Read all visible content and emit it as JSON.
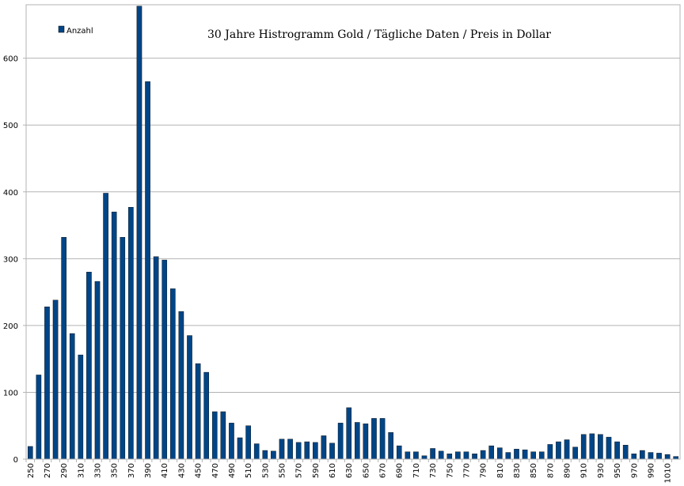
{
  "chart_data": {
    "type": "bar",
    "title": "30 Jahre Histrogramm Gold / Tägliche Daten / Preis in Dollar",
    "xlabel": "",
    "ylabel": "",
    "legend": {
      "position": "top-left",
      "entries": [
        "Anzahl"
      ]
    },
    "grid": "horizontal",
    "ylim": [
      0,
      680
    ],
    "yticks": [
      0,
      100,
      200,
      300,
      400,
      500,
      600
    ],
    "xtick_labels_shown": [
      "250",
      "270",
      "290",
      "310",
      "330",
      "350",
      "370",
      "390",
      "410",
      "430",
      "450",
      "470",
      "490",
      "510",
      "530",
      "550",
      "570",
      "590",
      "610",
      "630",
      "650",
      "670",
      "690",
      "710",
      "730",
      "750",
      "770",
      "790",
      "810",
      "830",
      "850",
      "870",
      "890",
      "910",
      "930",
      "950",
      "970",
      "990",
      "1010"
    ],
    "categories": [
      "250",
      "260",
      "270",
      "280",
      "290",
      "300",
      "310",
      "320",
      "330",
      "340",
      "350",
      "360",
      "370",
      "380",
      "390",
      "400",
      "410",
      "420",
      "430",
      "440",
      "450",
      "460",
      "470",
      "480",
      "490",
      "500",
      "510",
      "520",
      "530",
      "540",
      "550",
      "560",
      "570",
      "580",
      "590",
      "600",
      "610",
      "620",
      "630",
      "640",
      "650",
      "660",
      "670",
      "680",
      "690",
      "700",
      "710",
      "720",
      "730",
      "740",
      "750",
      "760",
      "770",
      "780",
      "790",
      "800",
      "810",
      "820",
      "830",
      "840",
      "850",
      "860",
      "870",
      "880",
      "890",
      "900",
      "910",
      "920",
      "930",
      "940",
      "950",
      "960",
      "970",
      "980",
      "990",
      "1000",
      "1010",
      "1020"
    ],
    "series": [
      {
        "name": "Anzahl",
        "color": "#004586",
        "values": [
          19,
          126,
          228,
          238,
          332,
          188,
          156,
          280,
          266,
          398,
          370,
          332,
          377,
          678,
          565,
          303,
          298,
          255,
          221,
          185,
          143,
          130,
          71,
          71,
          54,
          32,
          50,
          23,
          13,
          12,
          30,
          30,
          25,
          26,
          25,
          35,
          24,
          54,
          77,
          55,
          53,
          61,
          61,
          40,
          20,
          11,
          11,
          5,
          16,
          12,
          8,
          11,
          11,
          8,
          13,
          20,
          17,
          10,
          15,
          14,
          11,
          11,
          22,
          26,
          29,
          18,
          37,
          38,
          37,
          33,
          26,
          21,
          8,
          13,
          10,
          9,
          7,
          4
        ]
      }
    ]
  }
}
